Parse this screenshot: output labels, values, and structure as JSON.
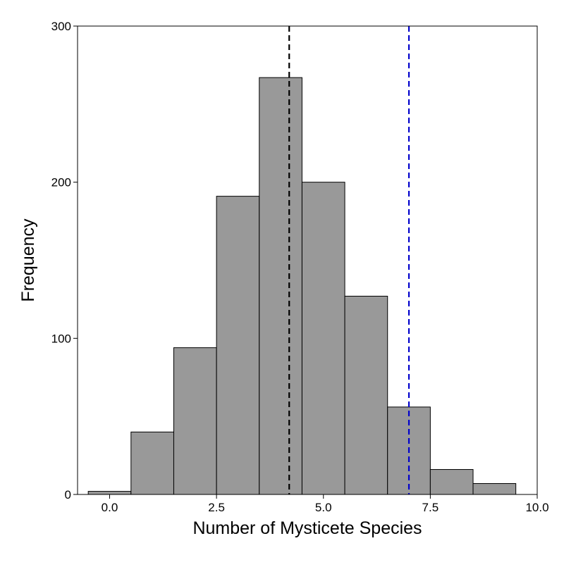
{
  "chart_data": {
    "type": "bar",
    "title": "",
    "xlabel": "Number of Mysticete Species",
    "ylabel": "Frequency",
    "xlim": [
      -0.75,
      10.0
    ],
    "ylim": [
      0,
      300
    ],
    "x_ticks": [
      0.0,
      2.5,
      5.0,
      7.5,
      10.0
    ],
    "x_tick_labels": [
      "0.0",
      "2.5",
      "5.0",
      "7.5",
      "10.0"
    ],
    "y_ticks": [
      0,
      100,
      200,
      300
    ],
    "y_tick_labels": [
      "0",
      "100",
      "200",
      "300"
    ],
    "bin_width": 1,
    "bins": [
      {
        "center": 0,
        "count": 2
      },
      {
        "center": 1,
        "count": 40
      },
      {
        "center": 2,
        "count": 94
      },
      {
        "center": 3,
        "count": 191
      },
      {
        "center": 4,
        "count": 267
      },
      {
        "center": 5,
        "count": 200
      },
      {
        "center": 6,
        "count": 127
      },
      {
        "center": 7,
        "count": 56
      },
      {
        "center": 8,
        "count": 16
      },
      {
        "center": 9,
        "count": 7
      }
    ],
    "reference_lines": [
      {
        "x": 4.2,
        "color": "#000000",
        "style": "dashed"
      },
      {
        "x": 7.0,
        "color": "#0000cc",
        "style": "dashed"
      }
    ],
    "bar_fill": "#999999",
    "bar_edge": "#000000",
    "grid": false,
    "legend": "none"
  }
}
